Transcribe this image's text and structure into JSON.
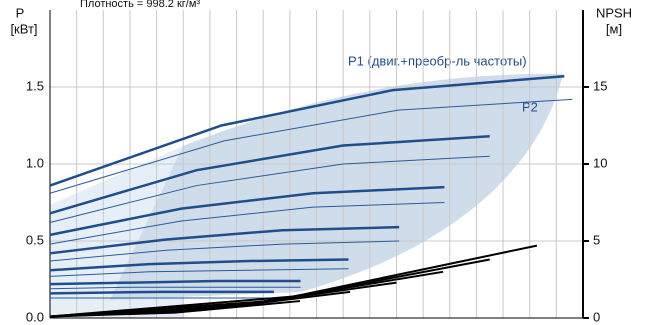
{
  "chart_data": {
    "type": "line",
    "subtitle": "Плотность = 998.2 кг/м³",
    "y_label": [
      "P",
      "[кВт]"
    ],
    "y2_label": [
      "NPSH",
      "[м]"
    ],
    "annotations": [
      "P1 (двиг.+преобр-ль частоты)",
      "P2"
    ],
    "xlim": [
      0,
      20
    ],
    "ylim": [
      0,
      2.0
    ],
    "yticks": [
      {
        "value": 0,
        "label": "0.0"
      },
      0.5,
      {
        "value": 1,
        "label": "1.0"
      },
      1.5
    ],
    "y2lim": [
      0,
      20
    ],
    "y2ticks": [
      0,
      5,
      10,
      15
    ],
    "grid": true,
    "series": [
      {
        "color": "#1f4e8c",
        "width": 2.5,
        "x": [
          0,
          6.43,
          12.87,
          19.3
        ],
        "values": [
          0.86,
          1.25,
          1.48,
          1.57
        ]
      },
      {
        "color": "#2a5a9a",
        "width": 1,
        "x": [
          0,
          6.53,
          13.07,
          19.6
        ],
        "values": [
          0.81,
          1.15,
          1.35,
          1.42
        ]
      },
      {
        "color": "#1f4e8c",
        "width": 2.5,
        "x": [
          0,
          5.5,
          11,
          16.5
        ],
        "values": [
          0.68,
          0.96,
          1.12,
          1.18
        ]
      },
      {
        "color": "#2a5a9a",
        "width": 1,
        "x": [
          0,
          5.5,
          11,
          16.5
        ],
        "values": [
          0.62,
          0.86,
          1.0,
          1.05
        ]
      },
      {
        "color": "#1f4e8c",
        "width": 2.5,
        "x": [
          0,
          4.93,
          9.87,
          14.8
        ],
        "values": [
          0.54,
          0.71,
          0.81,
          0.85
        ]
      },
      {
        "color": "#2a5a9a",
        "width": 1,
        "x": [
          0,
          4.93,
          9.87,
          14.8
        ],
        "values": [
          0.48,
          0.63,
          0.72,
          0.75
        ]
      },
      {
        "color": "#1f4e8c",
        "width": 2.5,
        "x": [
          0,
          4.37,
          8.73,
          13.1
        ],
        "values": [
          0.42,
          0.51,
          0.57,
          0.59
        ]
      },
      {
        "color": "#2a5a9a",
        "width": 1,
        "x": [
          0,
          4.37,
          8.73,
          13.1
        ],
        "values": [
          0.37,
          0.44,
          0.48,
          0.5
        ]
      },
      {
        "color": "#1f4e8c",
        "width": 2.5,
        "x": [
          0,
          3.73,
          7.47,
          11.2
        ],
        "values": [
          0.31,
          0.35,
          0.37,
          0.38
        ]
      },
      {
        "color": "#2a5a9a",
        "width": 1,
        "x": [
          0,
          3.73,
          7.47,
          11.2
        ],
        "values": [
          0.27,
          0.3,
          0.31,
          0.32
        ]
      },
      {
        "color": "#1f4e8c",
        "width": 2.5,
        "x": [
          0,
          3.13,
          6.27,
          9.4
        ],
        "values": [
          0.22,
          0.23,
          0.24,
          0.24
        ]
      },
      {
        "color": "#2a5a9a",
        "width": 1,
        "x": [
          0,
          3.13,
          6.27,
          9.4
        ],
        "values": [
          0.19,
          0.2,
          0.2,
          0.2
        ]
      },
      {
        "color": "#1f4e8c",
        "width": 2.5,
        "x": [
          0,
          4.2,
          8.4
        ],
        "values": [
          0.16,
          0.17,
          0.17
        ]
      },
      {
        "color": "#2a5a9a",
        "width": 1,
        "x": [
          0,
          4.2,
          8.4
        ],
        "values": [
          0.13,
          0.13,
          0.13
        ]
      },
      {
        "color": "#000000",
        "width": 2,
        "axis": "y2",
        "x": [
          0,
          9.14,
          18.27
        ],
        "values": [
          0.1,
          1.4,
          4.7
        ]
      },
      {
        "color": "#000000",
        "width": 2,
        "axis": "y2",
        "x": [
          0,
          8.25,
          16.5
        ],
        "values": [
          0.1,
          1.1,
          3.8
        ]
      },
      {
        "color": "#000000",
        "width": 2,
        "axis": "y2",
        "x": [
          0,
          7.38,
          14.75
        ],
        "values": [
          0.1,
          0.9,
          3.0
        ]
      },
      {
        "color": "#000000",
        "width": 2,
        "axis": "y2",
        "x": [
          0,
          6.5,
          13.0
        ],
        "values": [
          0.1,
          0.7,
          2.3
        ]
      },
      {
        "color": "#000000",
        "width": 2,
        "axis": "y2",
        "x": [
          0,
          5.63,
          11.26
        ],
        "values": [
          0.1,
          0.5,
          1.7
        ]
      },
      {
        "color": "#000000",
        "width": 2,
        "axis": "y2",
        "x": [
          0,
          4.69,
          9.38
        ],
        "values": [
          0.1,
          0.35,
          1.1
        ]
      }
    ]
  }
}
